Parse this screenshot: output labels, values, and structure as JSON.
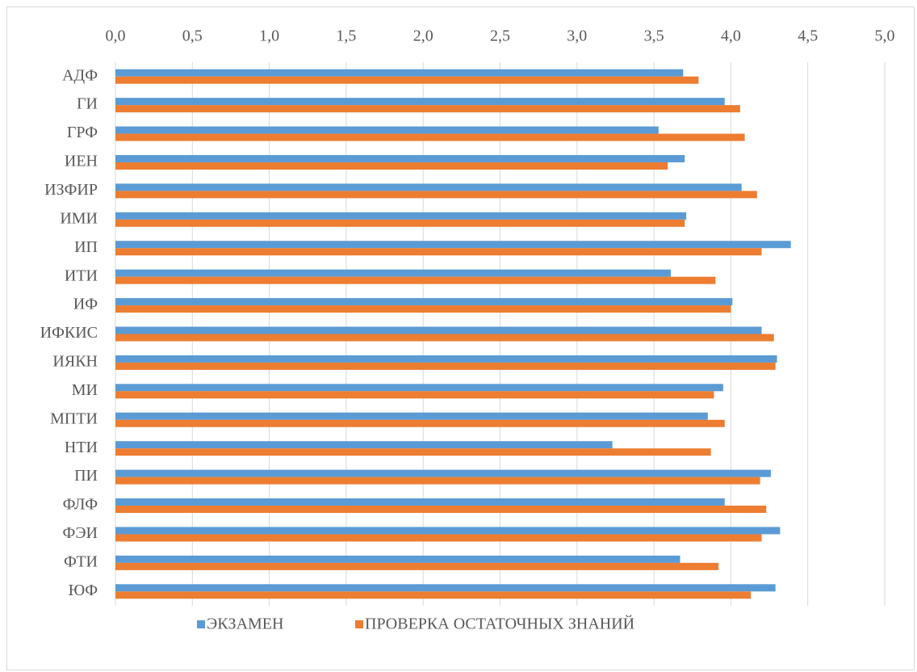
{
  "chart_data": {
    "type": "hbar",
    "categories": [
      "АДФ",
      "ГИ",
      "ГРФ",
      "ИЕН",
      "ИЗФИР",
      "ИМИ",
      "ИП",
      "ИТИ",
      "ИФ",
      "ИФКИС",
      "ИЯКН",
      "МИ",
      "МПТИ",
      "НТИ",
      "ПИ",
      "ФЛФ",
      "ФЭИ",
      "ФТИ",
      "ЮФ"
    ],
    "series": [
      {
        "name": "ЭКЗАМЕН",
        "color": "#5b9bd5",
        "values": [
          3.69,
          3.96,
          3.53,
          3.7,
          4.07,
          3.71,
          4.39,
          3.61,
          4.01,
          4.2,
          4.3,
          3.95,
          3.85,
          3.23,
          4.26,
          3.96,
          4.32,
          3.67,
          4.29
        ]
      },
      {
        "name": "ПРОВЕРКА ОСТАТОЧНЫХ ЗНАНИЙ",
        "color": "#ed7d31",
        "values": [
          3.79,
          4.06,
          4.09,
          3.59,
          4.17,
          3.7,
          4.2,
          3.9,
          4.0,
          4.28,
          4.29,
          3.89,
          3.96,
          3.87,
          4.19,
          4.23,
          4.2,
          3.92,
          4.13
        ]
      }
    ],
    "xlim": [
      0,
      5
    ],
    "xticks": [
      {
        "value": 0,
        "label": "0,0"
      },
      {
        "value": 0.5,
        "label": "0,5"
      },
      {
        "value": 1,
        "label": "1,0"
      },
      {
        "value": 1.5,
        "label": "1,5"
      },
      {
        "value": 2,
        "label": "2,0"
      },
      {
        "value": 2.5,
        "label": "2,5"
      },
      {
        "value": 3,
        "label": "3,0"
      },
      {
        "value": 3.5,
        "label": "3,5"
      },
      {
        "value": 4,
        "label": "4,0"
      },
      {
        "value": 4.5,
        "label": "4,5"
      },
      {
        "value": 5,
        "label": "5,0"
      }
    ],
    "grid": true,
    "legend": "bottom"
  }
}
